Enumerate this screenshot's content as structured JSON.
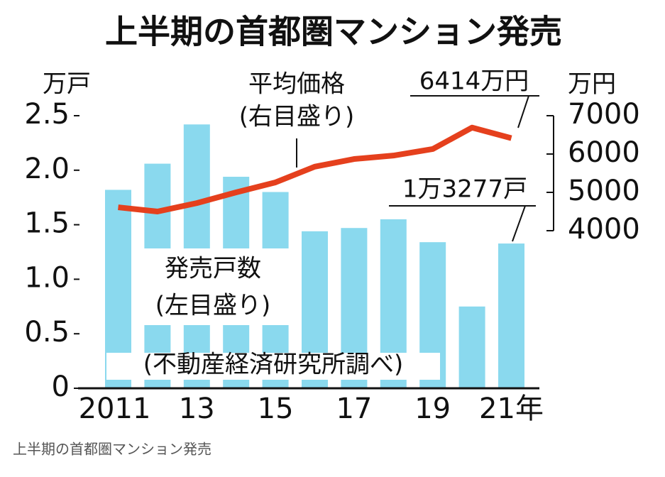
{
  "chart_data": {
    "type": "bar",
    "title": "上半期の首都圏マンション発売",
    "caption": "上半期の首都圏マンション発売",
    "y_label": "万戸",
    "y2_label": "万円",
    "source": "(不動産経済研究所調べ)",
    "annotations": [
      "(左目盛り)",
      "(右目盛り)"
    ],
    "categories": [
      "2011",
      null,
      "13",
      null,
      "15",
      null,
      "17",
      null,
      "19",
      null,
      "21年"
    ],
    "series": [
      {
        "name": "発売戸数",
        "type": "bar",
        "color": "#8ad9ee",
        "values": [
          1.82,
          2.06,
          2.42,
          1.94,
          1.8,
          1.44,
          1.47,
          1.55,
          1.34,
          0.75,
          1.3277
        ],
        "value_labels": [
          null,
          null,
          null,
          null,
          null,
          null,
          null,
          null,
          null,
          null,
          "1万3277戸"
        ]
      },
      {
        "name": "平均価格",
        "type": "line",
        "axis": "y2",
        "color": "#e5401d",
        "values": [
          4610,
          4500,
          4720,
          5000,
          5260,
          5670,
          5870,
          5960,
          6130,
          6690,
          6414
        ],
        "value_labels": [
          null,
          null,
          null,
          null,
          null,
          null,
          null,
          null,
          null,
          null,
          "6414万円"
        ]
      }
    ],
    "ylim": [
      0,
      2.5
    ],
    "yticks": [
      0,
      0.5,
      {
        "value": 1,
        "label": "1.0"
      },
      1.5,
      {
        "value": 2,
        "label": "2.0"
      },
      2.5
    ],
    "y2lim": [
      4000,
      7000
    ],
    "y2ticks": [
      4000,
      5000,
      6000,
      7000
    ]
  }
}
